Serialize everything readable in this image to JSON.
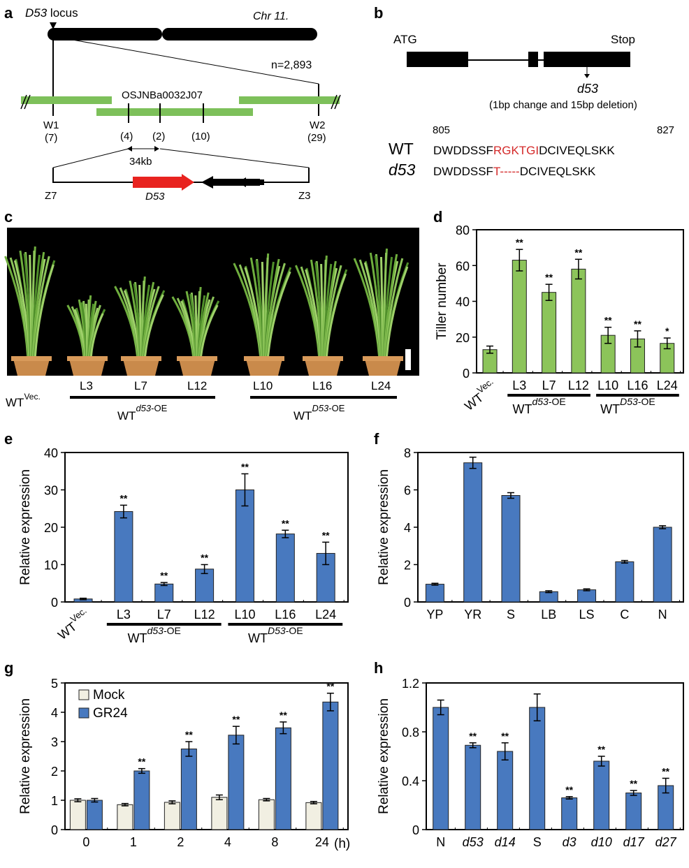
{
  "panels": {
    "a": {
      "letter": "a",
      "locus_label": "D53",
      "locus_suffix": " locus",
      "chromosome": "Chr 11.",
      "n_label": "n=2,893",
      "bac_label": "OSJNBa0032J07",
      "markers": [
        {
          "name": "W1",
          "count": "(7)"
        },
        {
          "name": "",
          "count": "(4)"
        },
        {
          "name": "",
          "count": "(2)"
        },
        {
          "name": "",
          "count": "(10)"
        },
        {
          "name": "W2",
          "count": "(29)"
        }
      ],
      "distance": "34kb",
      "left_end": "Z7",
      "right_end": "Z3",
      "gene": "D53",
      "colors": {
        "bac": "#7dc05a",
        "gene": "#e8231f"
      }
    },
    "b": {
      "letter": "b",
      "start": "ATG",
      "stop": "Stop",
      "mutant": "d53",
      "mutation_note": "(1bp change and 15bp deletion)",
      "pos_start": "805",
      "pos_end": "827",
      "wt_label": "WT",
      "mut_label": "d53",
      "wt_seq": {
        "pre": "DWDDSSF",
        "hl": "RGKTGI",
        "post": "DCIVEQLSKK"
      },
      "mut_seq": {
        "pre": "DWDDSSF",
        "hl": "T",
        "gap": "-----",
        "post": "DCIVEQLSKK"
      },
      "highlight_color": "#d42a2a"
    },
    "c": {
      "letter": "c",
      "wt_label": "WT",
      "wt_sup": "Vec.",
      "lines": [
        "L3",
        "L7",
        "L12",
        "L10",
        "L16",
        "L24"
      ],
      "group1": {
        "base": "WT",
        "sup_italic": "d53",
        "sup_rest": "-OE"
      },
      "group2": {
        "base": "WT",
        "sup_italic": "D53",
        "sup_rest": "-OE"
      }
    },
    "d": {
      "letter": "d"
    },
    "e": {
      "letter": "e"
    },
    "f": {
      "letter": "f"
    },
    "g": {
      "letter": "g",
      "unit": "(h)"
    },
    "h": {
      "letter": "h"
    }
  },
  "chart_data": [
    {
      "panel": "d",
      "type": "bar",
      "categories": [
        "WTVec.",
        "L3",
        "L7",
        "L12",
        "L10",
        "L16",
        "L24"
      ],
      "category_labels": [
        {
          "base": "WT",
          "sup": "Vec."
        },
        "L3",
        "L7",
        "L12",
        "L10",
        "L16",
        "L24"
      ],
      "series": [
        {
          "values": [
            13,
            63,
            45,
            58,
            21,
            19,
            16.5
          ],
          "errors": [
            2,
            6,
            4.5,
            5.5,
            4.5,
            4.5,
            3
          ]
        }
      ],
      "significance": [
        "",
        "**",
        "**",
        "**",
        "**",
        "**",
        "*"
      ],
      "ylabel": "Tiller number",
      "ylim": [
        0,
        80
      ],
      "yticks": [
        0,
        20,
        40,
        60,
        80
      ],
      "groups": [
        {
          "label": {
            "base": "WT",
            "sup_italic": "d53",
            "sup_rest": "-OE"
          },
          "members": [
            "L3",
            "L7",
            "L12"
          ]
        },
        {
          "label": {
            "base": "WT",
            "sup_italic": "D53",
            "sup_rest": "-OE"
          },
          "members": [
            "L10",
            "L16",
            "L24"
          ]
        }
      ],
      "color": "#8cc45a",
      "grid": false
    },
    {
      "panel": "e",
      "type": "bar",
      "categories": [
        "WTVec.",
        "L3",
        "L7",
        "L12",
        "L10",
        "L16",
        "L24"
      ],
      "category_labels": [
        {
          "base": "WT",
          "sup": "Vec."
        },
        "L3",
        "L7",
        "L12",
        "L10",
        "L16",
        "L24"
      ],
      "series": [
        {
          "values": [
            0.8,
            24.2,
            4.8,
            8.8,
            30,
            18.2,
            13
          ],
          "errors": [
            0.2,
            1.7,
            0.4,
            1.2,
            4.3,
            1,
            3
          ]
        }
      ],
      "significance": [
        "",
        "**",
        "**",
        "**",
        "**",
        "**",
        "**"
      ],
      "ylabel": "Relative expression",
      "ylim": [
        0,
        40
      ],
      "yticks": [
        0,
        10,
        20,
        30,
        40
      ],
      "groups": [
        {
          "label": {
            "base": "WT",
            "sup_italic": "d53",
            "sup_rest": "-OE"
          },
          "members": [
            "L3",
            "L7",
            "L12"
          ]
        },
        {
          "label": {
            "base": "WT",
            "sup_italic": "D53",
            "sup_rest": "-OE"
          },
          "members": [
            "L10",
            "L16",
            "L24"
          ]
        }
      ],
      "color": "#4879bf",
      "grid": false
    },
    {
      "panel": "f",
      "type": "bar",
      "categories": [
        "YP",
        "YR",
        "S",
        "LB",
        "LS",
        "C",
        "N"
      ],
      "series": [
        {
          "values": [
            0.95,
            7.45,
            5.7,
            0.55,
            0.65,
            2.15,
            4.0
          ],
          "errors": [
            0.05,
            0.3,
            0.15,
            0.05,
            0.05,
            0.07,
            0.08
          ]
        }
      ],
      "ylabel": "Relative expression",
      "ylim": [
        0,
        8
      ],
      "yticks": [
        0,
        2,
        4,
        6,
        8
      ],
      "color": "#4879bf",
      "grid": false
    },
    {
      "panel": "g",
      "type": "bar",
      "categories": [
        "0",
        "1",
        "2",
        "4",
        "8",
        "24"
      ],
      "series": [
        {
          "name": "Mock",
          "values": [
            1.0,
            0.85,
            0.93,
            1.1,
            1.02,
            0.92
          ],
          "errors": [
            0.05,
            0.04,
            0.05,
            0.08,
            0.04,
            0.04
          ],
          "color": "#f1efe2"
        },
        {
          "name": "GR24",
          "values": [
            1.0,
            2.0,
            2.75,
            3.22,
            3.47,
            4.35
          ],
          "errors": [
            0.06,
            0.08,
            0.25,
            0.3,
            0.2,
            0.3
          ],
          "color": "#4879bf"
        }
      ],
      "significance": [
        "",
        "**",
        "**",
        "**",
        "**",
        "**"
      ],
      "ylabel": "Relative expression",
      "ylim": [
        0,
        5
      ],
      "yticks": [
        0,
        1,
        2,
        3,
        4,
        5
      ],
      "legend": "top-left",
      "grid": false
    },
    {
      "panel": "h",
      "type": "bar",
      "categories": [
        "N",
        "d53",
        "d14",
        "S",
        "d3",
        "d10",
        "d17",
        "d27"
      ],
      "italic_categories": [
        "d53",
        "d14",
        "d3",
        "d10",
        "d17",
        "d27"
      ],
      "series": [
        {
          "values": [
            1.0,
            0.69,
            0.64,
            1.0,
            0.26,
            0.56,
            0.3,
            0.36
          ],
          "errors": [
            0.06,
            0.02,
            0.07,
            0.11,
            0.01,
            0.04,
            0.02,
            0.06
          ]
        }
      ],
      "significance": [
        "",
        "**",
        "**",
        "",
        "**",
        "**",
        "**",
        "**"
      ],
      "ylabel": "Relative expression",
      "ylim": [
        0,
        1.2
      ],
      "yticks": [
        "0",
        "0.4",
        "0.8",
        "1.2"
      ],
      "color": "#4879bf",
      "grid": false
    }
  ]
}
